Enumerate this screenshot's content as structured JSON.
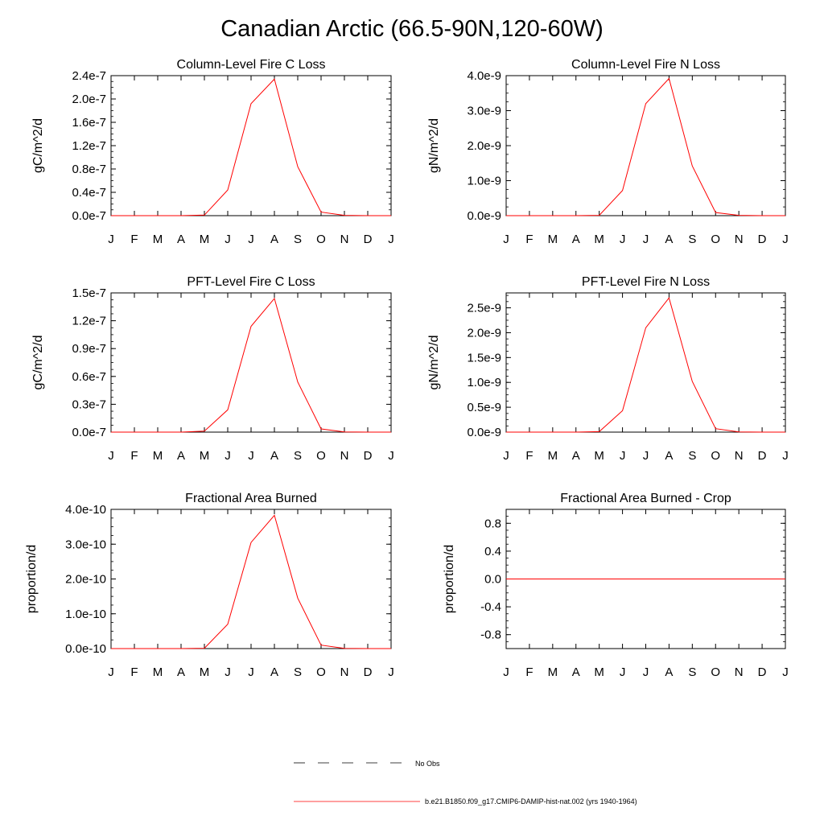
{
  "title": "Canadian Arctic (66.5-90N,120-60W)",
  "chart_data": [
    {
      "type": "line",
      "title": "Column-Level Fire C Loss",
      "ylabel": "gC/m^2/d",
      "xlabel": "",
      "categories": [
        "J",
        "F",
        "M",
        "A",
        "M",
        "J",
        "J",
        "A",
        "S",
        "O",
        "N",
        "D",
        "J"
      ],
      "ylim": [
        0,
        2.4e-07
      ],
      "yticks": [
        0,
        4e-08,
        8e-08,
        1.2e-07,
        1.6e-07,
        2e-07,
        2.4e-07
      ],
      "ytick_labels": [
        "0.0e-7",
        "0.4e-7",
        "0.8e-7",
        "1.2e-7",
        "1.6e-7",
        "2.0e-7",
        "2.4e-7"
      ],
      "series": [
        {
          "color": "#ff0000",
          "values": [
            0,
            0,
            0,
            0,
            1e-09,
            4.4e-08,
            1.92e-07,
            2.34e-07,
            8.4e-08,
            6e-09,
            5e-10,
            0,
            0
          ]
        }
      ]
    },
    {
      "type": "line",
      "title": "Column-Level Fire N Loss",
      "ylabel": "gN/m^2/d",
      "xlabel": "",
      "categories": [
        "J",
        "F",
        "M",
        "A",
        "M",
        "J",
        "J",
        "A",
        "S",
        "O",
        "N",
        "D",
        "J"
      ],
      "ylim": [
        0,
        4e-09
      ],
      "yticks": [
        0,
        1e-09,
        2e-09,
        3e-09,
        4e-09
      ],
      "ytick_labels": [
        "0.0e-9",
        "1.0e-9",
        "2.0e-9",
        "3.0e-9",
        "4.0e-9"
      ],
      "series": [
        {
          "color": "#ff0000",
          "values": [
            0,
            0,
            0,
            0,
            1e-11,
            7.2e-10,
            3.2e-09,
            3.92e-09,
            1.42e-09,
            9e-11,
            1e-11,
            0,
            0
          ]
        }
      ]
    },
    {
      "type": "line",
      "title": "PFT-Level Fire C Loss",
      "ylabel": "gC/m^2/d",
      "xlabel": "",
      "categories": [
        "J",
        "F",
        "M",
        "A",
        "M",
        "J",
        "J",
        "A",
        "S",
        "O",
        "N",
        "D",
        "J"
      ],
      "ylim": [
        0,
        1.5e-07
      ],
      "yticks": [
        0,
        3e-08,
        6e-08,
        9e-08,
        1.2e-07,
        1.5e-07
      ],
      "ytick_labels": [
        "0.0e-7",
        "0.3e-7",
        "0.6e-7",
        "0.9e-7",
        "1.2e-7",
        "1.5e-7"
      ],
      "series": [
        {
          "color": "#ff0000",
          "values": [
            0,
            0,
            0,
            0,
            1e-09,
            2.4e-08,
            1.14e-07,
            1.44e-07,
            5.4e-08,
            3.5e-09,
            3e-10,
            0,
            0
          ]
        }
      ]
    },
    {
      "type": "line",
      "title": "PFT-Level Fire N Loss",
      "ylabel": "gN/m^2/d",
      "xlabel": "",
      "categories": [
        "J",
        "F",
        "M",
        "A",
        "M",
        "J",
        "J",
        "A",
        "S",
        "O",
        "N",
        "D",
        "J"
      ],
      "ylim": [
        0,
        2.8e-09
      ],
      "yticks": [
        0,
        5e-10,
        1e-09,
        1.5e-09,
        2e-09,
        2.5e-09
      ],
      "ytick_labels": [
        "0.0e-9",
        "0.5e-9",
        "1.0e-9",
        "1.5e-9",
        "2.0e-9",
        "2.5e-9"
      ],
      "series": [
        {
          "color": "#ff0000",
          "values": [
            0,
            0,
            0,
            0,
            1e-11,
            4.3e-10,
            2.1e-09,
            2.7e-09,
            1.02e-09,
            7e-11,
            5e-12,
            0,
            0
          ]
        }
      ]
    },
    {
      "type": "line",
      "title": "Fractional Area Burned",
      "ylabel": "proportion/d",
      "xlabel": "",
      "categories": [
        "J",
        "F",
        "M",
        "A",
        "M",
        "J",
        "J",
        "A",
        "S",
        "O",
        "N",
        "D",
        "J"
      ],
      "ylim": [
        0,
        4e-10
      ],
      "yticks": [
        0,
        1e-10,
        2e-10,
        3e-10,
        4e-10
      ],
      "ytick_labels": [
        "0.0e-10",
        "1.0e-10",
        "2.0e-10",
        "3.0e-10",
        "4.0e-10"
      ],
      "series": [
        {
          "color": "#ff0000",
          "values": [
            0,
            0,
            0,
            0,
            1e-12,
            7e-11,
            3.05e-10,
            3.83e-10,
            1.45e-10,
            1e-11,
            5e-13,
            0,
            0
          ]
        }
      ]
    },
    {
      "type": "line",
      "title": "Fractional Area Burned - Crop",
      "ylabel": "proportion/d",
      "xlabel": "",
      "categories": [
        "J",
        "F",
        "M",
        "A",
        "M",
        "J",
        "J",
        "A",
        "S",
        "O",
        "N",
        "D",
        "J"
      ],
      "ylim": [
        -1.0,
        1.0
      ],
      "yticks": [
        -0.8,
        -0.4,
        0.0,
        0.4,
        0.8
      ],
      "ytick_labels": [
        "-0.8",
        "-0.4",
        "0.0",
        "0.4",
        "0.8"
      ],
      "series": [
        {
          "color": "#ff0000",
          "values": [
            0,
            0,
            0,
            0,
            0,
            0,
            0,
            0,
            0,
            0,
            0,
            0,
            0
          ]
        }
      ]
    }
  ],
  "legend": {
    "placement": "bottom-center",
    "items": [
      {
        "label": "No Obs",
        "color": "#000000",
        "style": "dashed"
      },
      {
        "label": "b.e21.B1850.f09_g17.CMIP6-DAMIP-hist-nat.002 (yrs 1940-1964)",
        "color": "#ff0000",
        "style": "solid"
      }
    ]
  }
}
